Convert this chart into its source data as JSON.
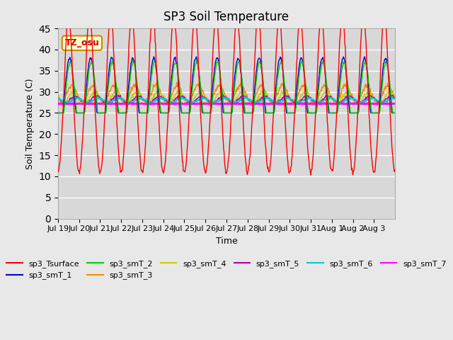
{
  "title": "SP3 Soil Temperature",
  "xlabel": "Time",
  "ylabel": "Soil Temperature (C)",
  "ylim": [
    0,
    45
  ],
  "yticks": [
    0,
    5,
    10,
    15,
    20,
    25,
    30,
    35,
    40,
    45
  ],
  "xtick_labels": [
    "Jul 19",
    "Jul 20",
    "Jul 21",
    "Jul 22",
    "Jul 23",
    "Jul 24",
    "Jul 25",
    "Jul 26",
    "Jul 27",
    "Jul 28",
    "Jul 29",
    "Jul 30",
    "Jul 31",
    "Aug 1",
    "Aug 2",
    "Aug 3"
  ],
  "annotation_text": "TZ_osu",
  "series_colors": {
    "sp3_Tsurface": "#ff0000",
    "sp3_smT_1": "#0000cc",
    "sp3_smT_2": "#00cc00",
    "sp3_smT_3": "#ff8800",
    "sp3_smT_4": "#cccc00",
    "sp3_smT_5": "#aa00aa",
    "sp3_smT_6": "#00cccc",
    "sp3_smT_7": "#ff00ff"
  },
  "background_color": "#e8e8e8",
  "axes_bg_color": "#d8d8d8",
  "n_days": 16,
  "points_per_day": 48
}
